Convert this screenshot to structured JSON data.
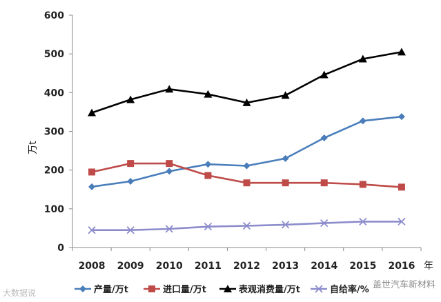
{
  "chart_data": {
    "type": "line",
    "x": [
      "2008",
      "2009",
      "2010",
      "2011",
      "2012",
      "2013",
      "2014",
      "2015",
      "2016"
    ],
    "x_unit": "年",
    "ylabel": "万t",
    "ylim": [
      0,
      600
    ],
    "yticks": [
      "0",
      "100",
      "200",
      "300",
      "400",
      "500",
      "600"
    ],
    "grid": false,
    "legend_position": "bottom",
    "series": [
      {
        "name": "产量/万t",
        "color": "#4a7ebb",
        "marker": "diamond",
        "values": [
          157,
          171,
          197,
          215,
          211,
          230,
          283,
          327,
          338
        ]
      },
      {
        "name": "进口量/万t",
        "color": "#be4b48",
        "marker": "square",
        "values": [
          195,
          217,
          217,
          186,
          167,
          167,
          167,
          163,
          156
        ]
      },
      {
        "name": "表观消费量/万t",
        "color": "#000000",
        "marker": "triangle",
        "values": [
          348,
          382,
          409,
          396,
          374,
          393,
          446,
          487,
          505
        ]
      },
      {
        "name": "自给率/%",
        "color": "#8c8ccc",
        "marker": "x",
        "values": [
          45,
          45,
          48,
          54,
          56,
          59,
          63,
          67,
          67
        ]
      }
    ]
  },
  "watermarks": {
    "left": "大数据说",
    "right": "盖世汽车新材料"
  }
}
